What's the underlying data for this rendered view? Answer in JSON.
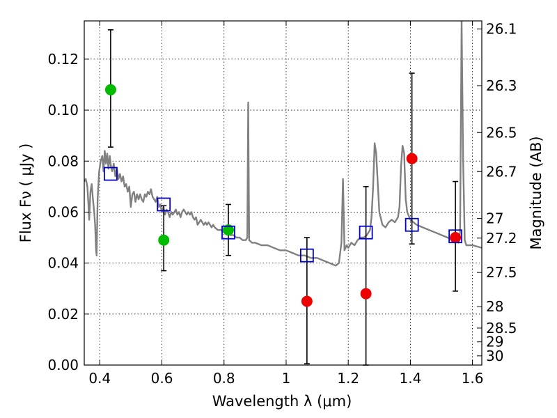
{
  "chart_data": {
    "type": "scatter",
    "xlabel": "Wavelength  λ (μm)",
    "ylabel": "Flux  Fν  ( μJy )",
    "y2label": "Magnitude (AB)",
    "xlim": [
      0.35,
      1.63
    ],
    "ylim": [
      0,
      0.135
    ],
    "grid": true,
    "x_ticks": [
      {
        "value": 0.4,
        "label": "0.4"
      },
      {
        "value": 0.6,
        "label": "0.6"
      },
      {
        "value": 0.8,
        "label": "0.8"
      },
      {
        "value": 1.0,
        "label": "1"
      },
      {
        "value": 1.2,
        "label": "1.2"
      },
      {
        "value": 1.4,
        "label": "1.4"
      },
      {
        "value": 1.6,
        "label": "1.6"
      }
    ],
    "y_ticks": [
      {
        "value": 0.0,
        "label": "0.00"
      },
      {
        "value": 0.02,
        "label": "0.02"
      },
      {
        "value": 0.04,
        "label": "0.04"
      },
      {
        "value": 0.06,
        "label": "0.06"
      },
      {
        "value": 0.08,
        "label": "0.08"
      },
      {
        "value": 0.1,
        "label": "0.10"
      },
      {
        "value": 0.12,
        "label": "0.12"
      }
    ],
    "mag_ticks": [
      {
        "flux": 0.1318,
        "label": "26.1"
      },
      {
        "flux": 0.1096,
        "label": "26.3"
      },
      {
        "flux": 0.0912,
        "label": "26.5"
      },
      {
        "flux": 0.0759,
        "label": "26.7"
      },
      {
        "flux": 0.0575,
        "label": "27"
      },
      {
        "flux": 0.0498,
        "label": "27.2"
      },
      {
        "flux": 0.0363,
        "label": "27.5"
      },
      {
        "flux": 0.0229,
        "label": "28"
      },
      {
        "flux": 0.0145,
        "label": "28.5"
      },
      {
        "flux": 0.0091,
        "label": "29"
      },
      {
        "flux": 0.0036,
        "label": "30"
      }
    ],
    "model_spectrum": {
      "color": "#808080",
      "points": [
        [
          0.35,
          0.072
        ],
        [
          0.355,
          0.073
        ],
        [
          0.36,
          0.07
        ],
        [
          0.363,
          0.064
        ],
        [
          0.366,
          0.057
        ],
        [
          0.37,
          0.068
        ],
        [
          0.374,
          0.071
        ],
        [
          0.378,
          0.065
        ],
        [
          0.382,
          0.06
        ],
        [
          0.385,
          0.055
        ],
        [
          0.388,
          0.045
        ],
        [
          0.39,
          0.043
        ],
        [
          0.393,
          0.065
        ],
        [
          0.398,
          0.076
        ],
        [
          0.403,
          0.08
        ],
        [
          0.408,
          0.082
        ],
        [
          0.412,
          0.076
        ],
        [
          0.416,
          0.084
        ],
        [
          0.42,
          0.079
        ],
        [
          0.424,
          0.083
        ],
        [
          0.428,
          0.077
        ],
        [
          0.432,
          0.082
        ],
        [
          0.436,
          0.078
        ],
        [
          0.44,
          0.076
        ],
        [
          0.445,
          0.079
        ],
        [
          0.45,
          0.074
        ],
        [
          0.455,
          0.077
        ],
        [
          0.46,
          0.073
        ],
        [
          0.465,
          0.075
        ],
        [
          0.47,
          0.072
        ],
        [
          0.475,
          0.074
        ],
        [
          0.48,
          0.07
        ],
        [
          0.485,
          0.071
        ],
        [
          0.49,
          0.068
        ],
        [
          0.495,
          0.07
        ],
        [
          0.5,
          0.062
        ],
        [
          0.505,
          0.067
        ],
        [
          0.51,
          0.068
        ],
        [
          0.515,
          0.064
        ],
        [
          0.52,
          0.067
        ],
        [
          0.525,
          0.065
        ],
        [
          0.53,
          0.067
        ],
        [
          0.535,
          0.065
        ],
        [
          0.54,
          0.064
        ],
        [
          0.545,
          0.067
        ],
        [
          0.55,
          0.066
        ],
        [
          0.555,
          0.068
        ],
        [
          0.56,
          0.067
        ],
        [
          0.565,
          0.069
        ],
        [
          0.57,
          0.066
        ],
        [
          0.575,
          0.065
        ],
        [
          0.58,
          0.064
        ],
        [
          0.585,
          0.066
        ],
        [
          0.59,
          0.062
        ],
        [
          0.595,
          0.063
        ],
        [
          0.6,
          0.06
        ],
        [
          0.605,
          0.062
        ],
        [
          0.61,
          0.059
        ],
        [
          0.615,
          0.061
        ],
        [
          0.62,
          0.06
        ],
        [
          0.625,
          0.058
        ],
        [
          0.63,
          0.06
        ],
        [
          0.635,
          0.059
        ],
        [
          0.64,
          0.06
        ],
        [
          0.645,
          0.061
        ],
        [
          0.65,
          0.059
        ],
        [
          0.655,
          0.06
        ],
        [
          0.66,
          0.058
        ],
        [
          0.665,
          0.06
        ],
        [
          0.67,
          0.061
        ],
        [
          0.675,
          0.06
        ],
        [
          0.68,
          0.059
        ],
        [
          0.685,
          0.06
        ],
        [
          0.69,
          0.059
        ],
        [
          0.695,
          0.06
        ],
        [
          0.7,
          0.058
        ],
        [
          0.705,
          0.057
        ],
        [
          0.71,
          0.058
        ],
        [
          0.715,
          0.055
        ],
        [
          0.72,
          0.056
        ],
        [
          0.725,
          0.057
        ],
        [
          0.73,
          0.056
        ],
        [
          0.735,
          0.055
        ],
        [
          0.74,
          0.056
        ],
        [
          0.745,
          0.055
        ],
        [
          0.75,
          0.056
        ],
        [
          0.755,
          0.055
        ],
        [
          0.76,
          0.054
        ],
        [
          0.765,
          0.055
        ],
        [
          0.77,
          0.054
        ],
        [
          0.78,
          0.053
        ],
        [
          0.79,
          0.053
        ],
        [
          0.8,
          0.052
        ],
        [
          0.81,
          0.052
        ],
        [
          0.82,
          0.051
        ],
        [
          0.83,
          0.051
        ],
        [
          0.84,
          0.05
        ],
        [
          0.85,
          0.05
        ],
        [
          0.86,
          0.049
        ],
        [
          0.87,
          0.049
        ],
        [
          0.875,
          0.05
        ],
        [
          0.878,
          0.103
        ],
        [
          0.881,
          0.049
        ],
        [
          0.89,
          0.048
        ],
        [
          0.9,
          0.048
        ],
        [
          0.92,
          0.047
        ],
        [
          0.94,
          0.047
        ],
        [
          0.96,
          0.046
        ],
        [
          0.98,
          0.045
        ],
        [
          1.0,
          0.045
        ],
        [
          1.02,
          0.044
        ],
        [
          1.04,
          0.043
        ],
        [
          1.06,
          0.043
        ],
        [
          1.08,
          0.042
        ],
        [
          1.1,
          0.042
        ],
        [
          1.12,
          0.041
        ],
        [
          1.14,
          0.04
        ],
        [
          1.16,
          0.039
        ],
        [
          1.17,
          0.04
        ],
        [
          1.178,
          0.048
        ],
        [
          1.183,
          0.073
        ],
        [
          1.188,
          0.045
        ],
        [
          1.195,
          0.047
        ],
        [
          1.2,
          0.046
        ],
        [
          1.21,
          0.048
        ],
        [
          1.22,
          0.047
        ],
        [
          1.23,
          0.049
        ],
        [
          1.24,
          0.05
        ],
        [
          1.25,
          0.05
        ],
        [
          1.26,
          0.051
        ],
        [
          1.27,
          0.053
        ],
        [
          1.275,
          0.058
        ],
        [
          1.28,
          0.07
        ],
        [
          1.285,
          0.087
        ],
        [
          1.29,
          0.083
        ],
        [
          1.3,
          0.06
        ],
        [
          1.31,
          0.055
        ],
        [
          1.32,
          0.054
        ],
        [
          1.33,
          0.056
        ],
        [
          1.34,
          0.057
        ],
        [
          1.35,
          0.056
        ],
        [
          1.36,
          0.058
        ],
        [
          1.365,
          0.062
        ],
        [
          1.37,
          0.078
        ],
        [
          1.375,
          0.086
        ],
        [
          1.38,
          0.083
        ],
        [
          1.385,
          0.065
        ],
        [
          1.39,
          0.06
        ],
        [
          1.4,
          0.057
        ],
        [
          1.42,
          0.055
        ],
        [
          1.44,
          0.054
        ],
        [
          1.46,
          0.053
        ],
        [
          1.48,
          0.052
        ],
        [
          1.5,
          0.051
        ],
        [
          1.52,
          0.05
        ],
        [
          1.535,
          0.049
        ],
        [
          1.545,
          0.049
        ],
        [
          1.555,
          0.048
        ],
        [
          1.56,
          0.052
        ],
        [
          1.565,
          0.135
        ],
        [
          1.57,
          0.08
        ],
        [
          1.575,
          0.049
        ],
        [
          1.58,
          0.047
        ],
        [
          1.6,
          0.047
        ],
        [
          1.63,
          0.046
        ]
      ]
    },
    "series": [
      {
        "color": "#00bb00",
        "marker": "circle",
        "points": [
          {
            "x": 0.435,
            "y": 0.108,
            "err_low": 0.0855,
            "err_high": 0.1315
          },
          {
            "x": 0.606,
            "y": 0.049,
            "err_low": 0.037,
            "err_high": 0.0625
          },
          {
            "x": 0.814,
            "y": 0.053,
            "err_low": 0.043,
            "err_high": 0.063
          }
        ]
      },
      {
        "color": "#ee0000",
        "marker": "circle",
        "points": [
          {
            "x": 1.067,
            "y": 0.025,
            "err_low": 0.0005,
            "err_high": 0.05
          },
          {
            "x": 1.257,
            "y": 0.028,
            "err_low": 0.0,
            "err_high": 0.07
          },
          {
            "x": 1.405,
            "y": 0.081,
            "err_low": 0.0475,
            "err_high": 0.1145
          },
          {
            "x": 1.545,
            "y": 0.05,
            "err_low": 0.029,
            "err_high": 0.072
          }
        ]
      },
      {
        "color": "#0000cc",
        "marker": "square",
        "points": [
          {
            "x": 0.435,
            "y": 0.075
          },
          {
            "x": 0.606,
            "y": 0.063
          },
          {
            "x": 0.814,
            "y": 0.052
          },
          {
            "x": 1.067,
            "y": 0.043
          },
          {
            "x": 1.257,
            "y": 0.052
          },
          {
            "x": 1.405,
            "y": 0.055
          },
          {
            "x": 1.545,
            "y": 0.0505
          }
        ]
      }
    ]
  }
}
